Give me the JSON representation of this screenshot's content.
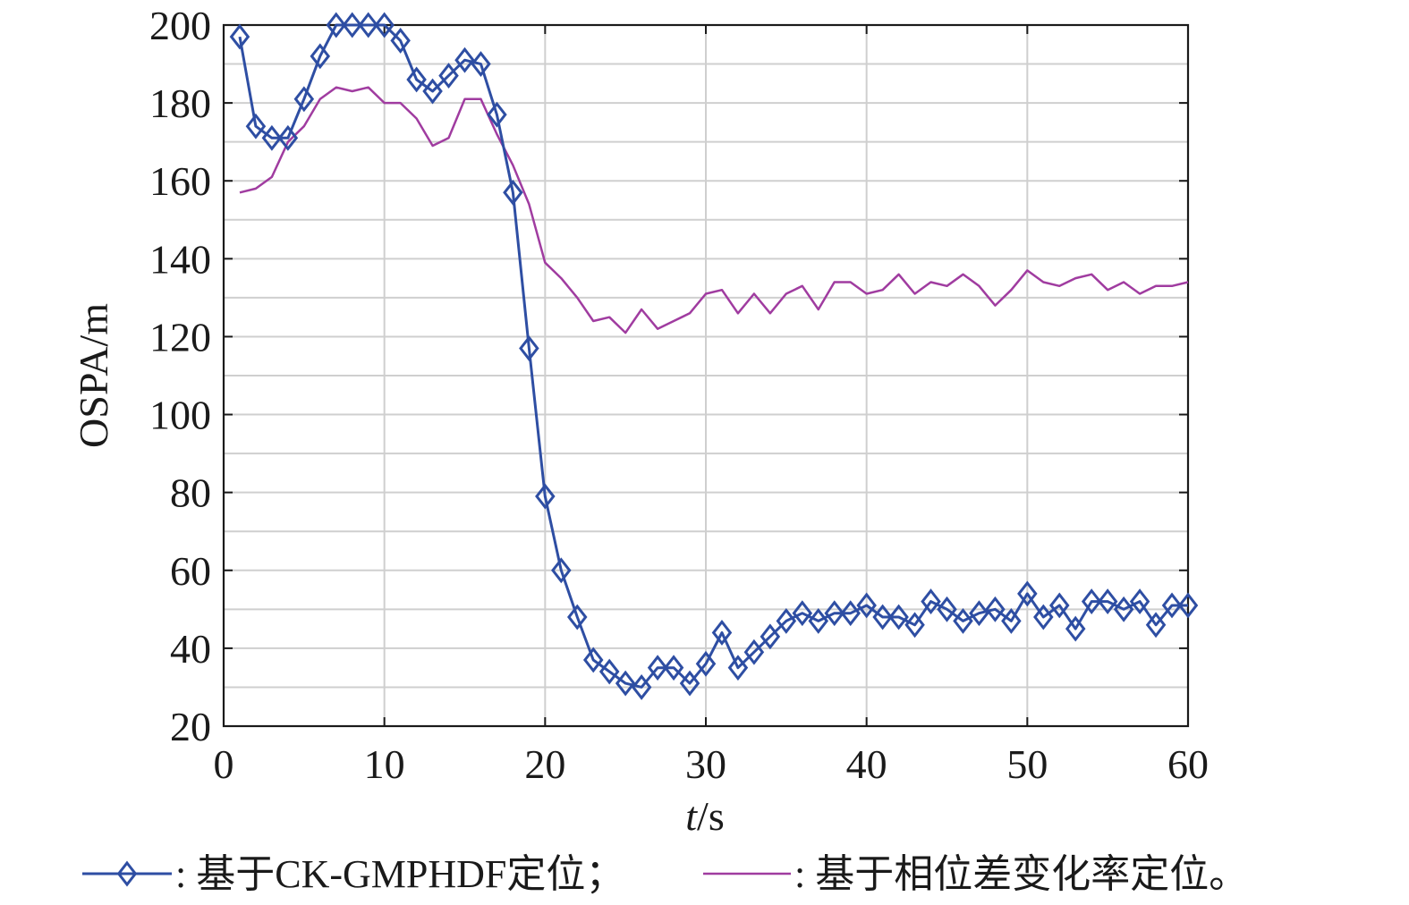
{
  "chart_data": {
    "type": "line",
    "xlabel_italic": "t",
    "xlabel_rest": "/s",
    "ylabel": "OSPA/m",
    "xlim": [
      0,
      60
    ],
    "ylim": [
      20,
      200
    ],
    "xticks": [
      0,
      10,
      20,
      30,
      40,
      50,
      60
    ],
    "yticks": [
      20,
      40,
      60,
      80,
      100,
      120,
      140,
      160,
      180,
      200
    ],
    "grid": true,
    "legend_position": "bottom",
    "series": [
      {
        "name": ": 基于CK-GMPHDF定位；",
        "color": "#2e4ea3",
        "marker": "diamond",
        "x": [
          1,
          2,
          3,
          4,
          5,
          6,
          7,
          8,
          9,
          10,
          11,
          12,
          13,
          14,
          15,
          16,
          17,
          18,
          19,
          20,
          21,
          22,
          23,
          24,
          25,
          26,
          27,
          28,
          29,
          30,
          31,
          32,
          33,
          34,
          35,
          36,
          37,
          38,
          39,
          40,
          41,
          42,
          43,
          44,
          45,
          46,
          47,
          48,
          49,
          50,
          51,
          52,
          53,
          54,
          55,
          56,
          57,
          58,
          59,
          60
        ],
        "values": [
          197,
          174,
          171,
          171,
          181,
          192,
          200,
          200,
          200,
          200,
          196,
          186,
          183,
          187,
          191,
          190,
          177,
          157,
          117,
          79,
          60,
          48,
          37,
          34,
          31,
          30,
          35,
          35,
          31,
          36,
          44,
          35,
          39,
          43,
          47,
          49,
          47,
          49,
          49,
          51,
          48,
          48,
          46,
          52,
          50,
          47,
          49,
          50,
          47,
          54,
          48,
          51,
          45,
          52,
          52,
          50,
          52,
          46,
          51,
          51
        ]
      },
      {
        "name": ": 基于相位差变化率定位。",
        "color": "#a03ca0",
        "marker": "none",
        "x": [
          1,
          2,
          3,
          4,
          5,
          6,
          7,
          8,
          9,
          10,
          11,
          12,
          13,
          14,
          15,
          16,
          17,
          18,
          19,
          20,
          21,
          22,
          23,
          24,
          25,
          26,
          27,
          28,
          29,
          30,
          31,
          32,
          33,
          34,
          35,
          36,
          37,
          38,
          39,
          40,
          41,
          42,
          43,
          44,
          45,
          46,
          47,
          48,
          49,
          50,
          51,
          52,
          53,
          54,
          55,
          56,
          57,
          58,
          59,
          60
        ],
        "values": [
          157,
          158,
          161,
          170,
          174,
          181,
          184,
          183,
          184,
          180,
          180,
          176,
          169,
          171,
          181,
          181,
          172,
          164,
          154,
          139,
          135,
          130,
          124,
          125,
          121,
          127,
          122,
          124,
          126,
          131,
          132,
          126,
          131,
          126,
          131,
          133,
          127,
          134,
          134,
          131,
          132,
          136,
          131,
          134,
          133,
          136,
          133,
          128,
          132,
          137,
          134,
          133,
          135,
          136,
          132,
          134,
          131,
          133,
          133,
          134
        ]
      }
    ]
  }
}
